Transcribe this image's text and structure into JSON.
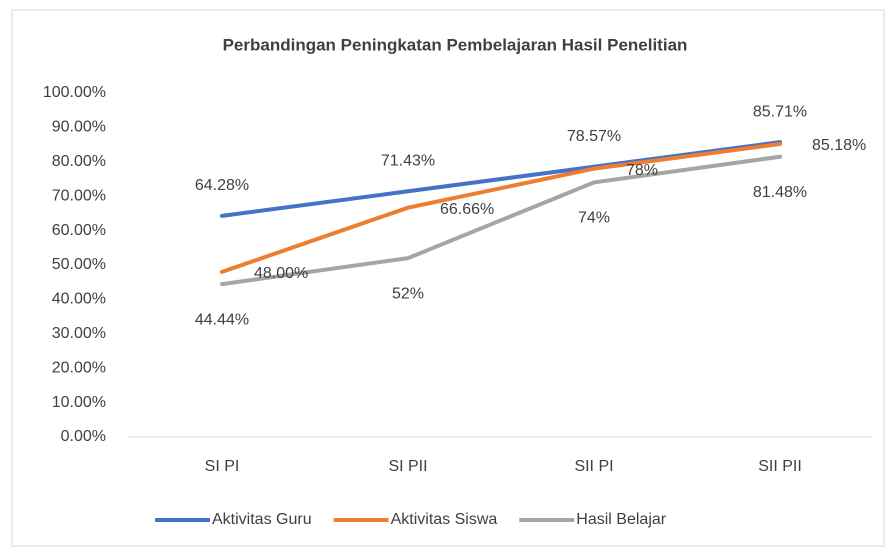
{
  "chart_data": {
    "type": "line",
    "title": "Perbandingan Peningkatan Pembelajaran Hasil Penelitian",
    "categories": [
      "SI PI",
      "SI PII",
      "SII PI",
      "SII PII"
    ],
    "series": [
      {
        "name": "Aktivitas Guru",
        "color": "#4472c4",
        "values": [
          64.28,
          71.43,
          78.57,
          85.71
        ],
        "value_labels": [
          "64.28%",
          "71.43%",
          "78.57%",
          "85.71%"
        ]
      },
      {
        "name": "Aktivitas Siswa",
        "color": "#ed7d31",
        "values": [
          48.0,
          66.66,
          78,
          85.18
        ],
        "value_labels": [
          "48.00%",
          "66.66%",
          "78%",
          "85.18%"
        ]
      },
      {
        "name": "Hasil Belajar",
        "color": "#a5a5a5",
        "values": [
          44.44,
          52,
          74,
          81.48
        ],
        "value_labels": [
          "44.44%",
          "52%",
          "74%",
          "81.48%"
        ]
      }
    ],
    "ylim": [
      0,
      100
    ],
    "yticks": [
      {
        "value": 0,
        "label": "0.00%"
      },
      {
        "value": 10,
        "label": "10.00%"
      },
      {
        "value": 20,
        "label": "20.00%"
      },
      {
        "value": 30,
        "label": "30.00%"
      },
      {
        "value": 40,
        "label": "40.00%"
      },
      {
        "value": 50,
        "label": "50.00%"
      },
      {
        "value": 60,
        "label": "60.00%"
      },
      {
        "value": 70,
        "label": "70.00%"
      },
      {
        "value": 80,
        "label": "80.00%"
      },
      {
        "value": 90,
        "label": "90.00%"
      },
      {
        "value": 100,
        "label": "100.00%"
      }
    ],
    "legend": "bottom"
  }
}
